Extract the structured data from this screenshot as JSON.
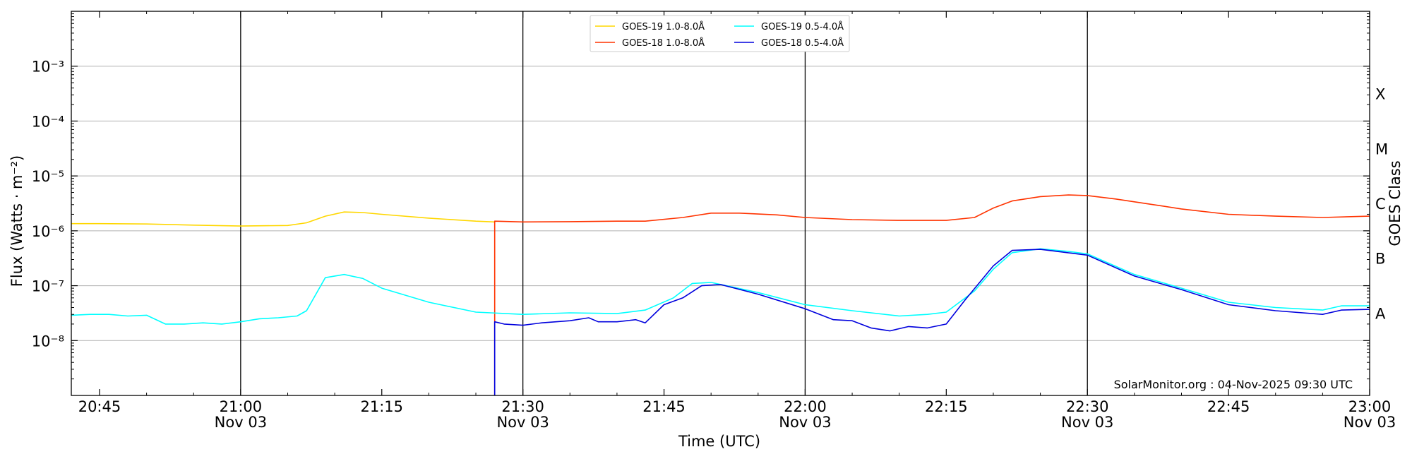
{
  "chart_data": {
    "type": "line",
    "xlabel": "Time (UTC)",
    "ylabel": "Flux (Watts · m⁻²)",
    "ylabel_right": "GOES Class",
    "credit": "SolarMonitor.org : 04-Nov-2025 09:30 UTC",
    "x_range": [
      "20:42",
      "23:00"
    ],
    "y_scale": "log",
    "ylim": [
      1e-09,
      0.01
    ],
    "y_ticks": [
      {
        "value": 1e-08,
        "label": "10⁻⁸"
      },
      {
        "value": 1e-07,
        "label": "10⁻⁷"
      },
      {
        "value": 1e-06,
        "label": "10⁻⁶"
      },
      {
        "value": 1e-05,
        "label": "10⁻⁵"
      },
      {
        "value": 0.0001,
        "label": "10⁻⁴"
      },
      {
        "value": 0.001,
        "label": "10⁻³"
      }
    ],
    "x_ticks": [
      {
        "time": "20:45",
        "label": "20:45",
        "sublabel": ""
      },
      {
        "time": "21:00",
        "label": "21:00",
        "sublabel": "Nov 03"
      },
      {
        "time": "21:15",
        "label": "21:15",
        "sublabel": ""
      },
      {
        "time": "21:30",
        "label": "21:30",
        "sublabel": "Nov 03"
      },
      {
        "time": "21:45",
        "label": "21:45",
        "sublabel": ""
      },
      {
        "time": "22:00",
        "label": "22:00",
        "sublabel": "Nov 03"
      },
      {
        "time": "22:15",
        "label": "22:15",
        "sublabel": ""
      },
      {
        "time": "22:30",
        "label": "22:30",
        "sublabel": "Nov 03"
      },
      {
        "time": "22:45",
        "label": "22:45",
        "sublabel": ""
      },
      {
        "time": "23:00",
        "label": "23:00",
        "sublabel": "Nov 03"
      }
    ],
    "vertical_markers": [
      "21:00",
      "21:30",
      "22:00",
      "22:30"
    ],
    "horizontal_gridlines": [
      1e-08,
      1e-07,
      1e-06,
      1e-05,
      0.0001,
      0.001
    ],
    "class_labels": [
      {
        "label": "A",
        "value": 1e-08
      },
      {
        "label": "B",
        "value": 1e-07
      },
      {
        "label": "C",
        "value": 1e-06
      },
      {
        "label": "M",
        "value": 1e-05
      },
      {
        "label": "X",
        "value": 0.0001
      }
    ],
    "legend_position": "top-center",
    "legend_columns": [
      [
        "GOES-19 1.0-8.0Å",
        "GOES-18 1.0-8.0Å"
      ],
      [
        "GOES-19 0.5-4.0Å",
        "GOES-18 0.5-4.0Å"
      ]
    ],
    "series": [
      {
        "name": "GOES-19 1.0-8.0Å",
        "color": "#ffd700",
        "points": [
          [
            "20:42",
            1.35e-06
          ],
          [
            "20:45",
            1.35e-06
          ],
          [
            "20:50",
            1.33e-06
          ],
          [
            "20:55",
            1.27e-06
          ],
          [
            "21:00",
            1.22e-06
          ],
          [
            "21:05",
            1.25e-06
          ],
          [
            "21:07",
            1.4e-06
          ],
          [
            "21:09",
            1.85e-06
          ],
          [
            "21:11",
            2.2e-06
          ],
          [
            "21:13",
            2.15e-06
          ],
          [
            "21:15",
            2e-06
          ],
          [
            "21:20",
            1.7e-06
          ],
          [
            "21:25",
            1.5e-06
          ],
          [
            "21:27",
            1.45e-06
          ]
        ]
      },
      {
        "name": "GOES-18 1.0-8.0Å",
        "color": "#ff3300",
        "points": [
          [
            "21:27",
            1e-09
          ],
          [
            "21:27",
            1.5e-06
          ],
          [
            "21:30",
            1.45e-06
          ],
          [
            "21:35",
            1.47e-06
          ],
          [
            "21:40",
            1.5e-06
          ],
          [
            "21:43",
            1.5e-06
          ],
          [
            "21:47",
            1.75e-06
          ],
          [
            "21:50",
            2.1e-06
          ],
          [
            "21:53",
            2.1e-06
          ],
          [
            "21:57",
            1.95e-06
          ],
          [
            "22:00",
            1.75e-06
          ],
          [
            "22:05",
            1.6e-06
          ],
          [
            "22:10",
            1.55e-06
          ],
          [
            "22:15",
            1.55e-06
          ],
          [
            "22:18",
            1.75e-06
          ],
          [
            "22:20",
            2.6e-06
          ],
          [
            "22:22",
            3.5e-06
          ],
          [
            "22:25",
            4.2e-06
          ],
          [
            "22:28",
            4.5e-06
          ],
          [
            "22:30",
            4.4e-06
          ],
          [
            "22:33",
            3.8e-06
          ],
          [
            "22:37",
            3e-06
          ],
          [
            "22:40",
            2.5e-06
          ],
          [
            "22:45",
            2e-06
          ],
          [
            "22:50",
            1.85e-06
          ],
          [
            "22:55",
            1.75e-06
          ],
          [
            "23:00",
            1.85e-06
          ]
        ]
      },
      {
        "name": "GOES-19 0.5-4.0Å",
        "color": "#00ffff",
        "points": [
          [
            "20:42",
            2.9e-08
          ],
          [
            "20:44",
            3e-08
          ],
          [
            "20:46",
            3e-08
          ],
          [
            "20:48",
            2.8e-08
          ],
          [
            "20:50",
            2.9e-08
          ],
          [
            "20:52",
            2e-08
          ],
          [
            "20:54",
            2e-08
          ],
          [
            "20:56",
            2.1e-08
          ],
          [
            "20:58",
            2e-08
          ],
          [
            "21:00",
            2.2e-08
          ],
          [
            "21:02",
            2.5e-08
          ],
          [
            "21:04",
            2.6e-08
          ],
          [
            "21:06",
            2.8e-08
          ],
          [
            "21:07",
            3.5e-08
          ],
          [
            "21:09",
            1.4e-07
          ],
          [
            "21:11",
            1.6e-07
          ],
          [
            "21:13",
            1.35e-07
          ],
          [
            "21:15",
            9e-08
          ],
          [
            "21:20",
            5e-08
          ],
          [
            "21:25",
            3.3e-08
          ],
          [
            "21:30",
            3e-08
          ],
          [
            "21:35",
            3.2e-08
          ],
          [
            "21:40",
            3.1e-08
          ],
          [
            "21:43",
            3.6e-08
          ],
          [
            "21:46",
            6e-08
          ],
          [
            "21:48",
            1.1e-07
          ],
          [
            "21:50",
            1.15e-07
          ],
          [
            "21:55",
            7.5e-08
          ],
          [
            "22:00",
            4.5e-08
          ],
          [
            "22:05",
            3.5e-08
          ],
          [
            "22:10",
            2.8e-08
          ],
          [
            "22:13",
            3e-08
          ],
          [
            "22:15",
            3.3e-08
          ],
          [
            "22:18",
            8e-08
          ],
          [
            "22:20",
            2e-07
          ],
          [
            "22:22",
            4e-07
          ],
          [
            "22:25",
            4.7e-07
          ],
          [
            "22:28",
            4.2e-07
          ],
          [
            "22:30",
            3.8e-07
          ],
          [
            "22:35",
            1.6e-07
          ],
          [
            "22:40",
            9e-08
          ],
          [
            "22:45",
            5e-08
          ],
          [
            "22:50",
            4e-08
          ],
          [
            "22:55",
            3.6e-08
          ],
          [
            "22:57",
            4.3e-08
          ],
          [
            "23:00",
            4.3e-08
          ]
        ]
      },
      {
        "name": "GOES-18 0.5-4.0Å",
        "color": "#0000dd",
        "points": [
          [
            "21:27",
            1e-09
          ],
          [
            "21:27",
            2.2e-08
          ],
          [
            "21:28",
            2e-08
          ],
          [
            "21:30",
            1.9e-08
          ],
          [
            "21:32",
            2.1e-08
          ],
          [
            "21:35",
            2.3e-08
          ],
          [
            "21:37",
            2.6e-08
          ],
          [
            "21:38",
            2.2e-08
          ],
          [
            "21:40",
            2.2e-08
          ],
          [
            "21:42",
            2.4e-08
          ],
          [
            "21:43",
            2.1e-08
          ],
          [
            "21:45",
            4.5e-08
          ],
          [
            "21:47",
            6e-08
          ],
          [
            "21:49",
            1e-07
          ],
          [
            "21:51",
            1.05e-07
          ],
          [
            "21:55",
            7e-08
          ],
          [
            "22:00",
            3.8e-08
          ],
          [
            "22:03",
            2.4e-08
          ],
          [
            "22:05",
            2.3e-08
          ],
          [
            "22:07",
            1.7e-08
          ],
          [
            "22:09",
            1.5e-08
          ],
          [
            "22:11",
            1.8e-08
          ],
          [
            "22:13",
            1.7e-08
          ],
          [
            "22:15",
            2e-08
          ],
          [
            "22:17",
            5.5e-08
          ],
          [
            "22:20",
            2.3e-07
          ],
          [
            "22:22",
            4.4e-07
          ],
          [
            "22:25",
            4.6e-07
          ],
          [
            "22:30",
            3.6e-07
          ],
          [
            "22:35",
            1.5e-07
          ],
          [
            "22:40",
            8.5e-08
          ],
          [
            "22:45",
            4.5e-08
          ],
          [
            "22:50",
            3.5e-08
          ],
          [
            "22:55",
            3e-08
          ],
          [
            "22:57",
            3.6e-08
          ],
          [
            "23:00",
            3.7e-08
          ]
        ]
      }
    ]
  }
}
